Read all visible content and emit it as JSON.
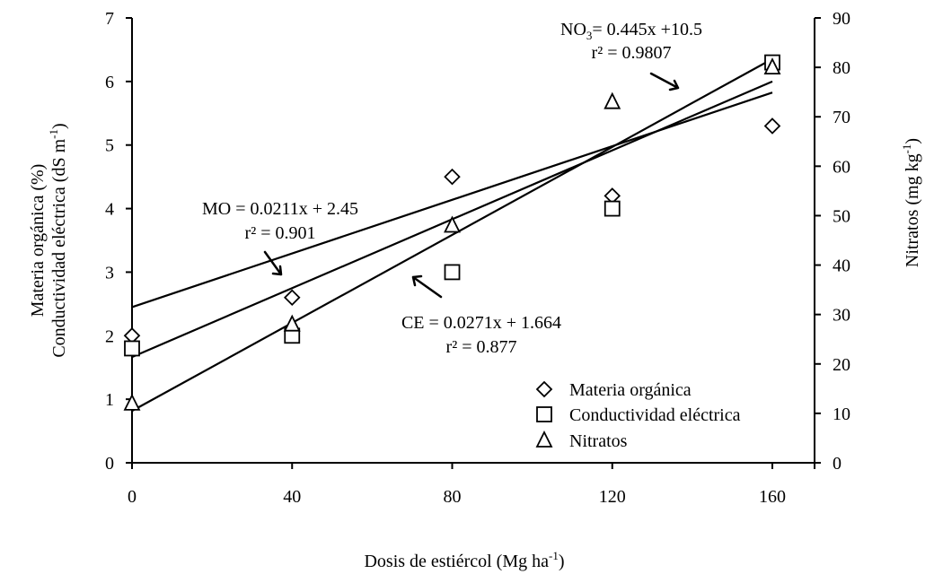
{
  "chart_data": {
    "type": "scatter",
    "x_categories": [
      0,
      40,
      80,
      120,
      160
    ],
    "xlim": [
      0,
      160
    ],
    "xticks": [
      "0",
      "40",
      "80",
      "120",
      "160"
    ],
    "xlabel": {
      "main": "Dosis de estiércol (Mg ha",
      "sup": "-1",
      "end": ")"
    },
    "left_axis": {
      "ylim": [
        0,
        7
      ],
      "ticks": [
        "0",
        "1",
        "2",
        "3",
        "4",
        "5",
        "6",
        "7"
      ],
      "label_line1": "Materia orgánica (%)",
      "label_line2": {
        "main": "Conductividad eléctrica (dS  m",
        "sup": "-1",
        "end": ")"
      }
    },
    "right_axis": {
      "ylim": [
        0,
        90
      ],
      "ticks": [
        "0",
        "10",
        "20",
        "30",
        "40",
        "50",
        "60",
        "70",
        "80",
        "90"
      ],
      "label": {
        "main": "Nitratos   (mg kg",
        "sup": "-1",
        "end": ")"
      }
    },
    "series": [
      {
        "name": "Materia orgánica",
        "axis": "left",
        "marker": "diamond",
        "x": [
          0,
          40,
          80,
          120,
          160
        ],
        "y": [
          2.0,
          2.6,
          4.5,
          4.2,
          5.3
        ],
        "fit": {
          "slope": 0.0211,
          "intercept": 2.45
        }
      },
      {
        "name": "Conductividad eléctrica",
        "axis": "left",
        "marker": "square",
        "x": [
          0,
          40,
          80,
          120,
          160
        ],
        "y": [
          1.8,
          2.0,
          3.0,
          4.0,
          6.3
        ],
        "fit": {
          "slope": 0.0271,
          "intercept": 1.664
        }
      },
      {
        "name": "Nitratos",
        "axis": "right",
        "marker": "triangle",
        "x": [
          0,
          40,
          80,
          120,
          160
        ],
        "y": [
          12,
          28,
          48,
          73,
          80
        ],
        "fit": {
          "slope": 0.445,
          "intercept": 10.5
        }
      }
    ],
    "annotations": [
      {
        "id": "mo",
        "line1": "MO = 0.0211x + 2.45",
        "line2": "r² = 0.901"
      },
      {
        "id": "ce",
        "line1": "CE = 0.0271x + 1.664",
        "line2": "r² = 0.877"
      },
      {
        "id": "no3",
        "line1_a": "NO",
        "line1_sub": "3",
        "line1_b": "= 0.445x +10.5",
        "line2": "r² = 0.9807"
      }
    ],
    "legend_position": "bottom-right",
    "grid": false
  }
}
